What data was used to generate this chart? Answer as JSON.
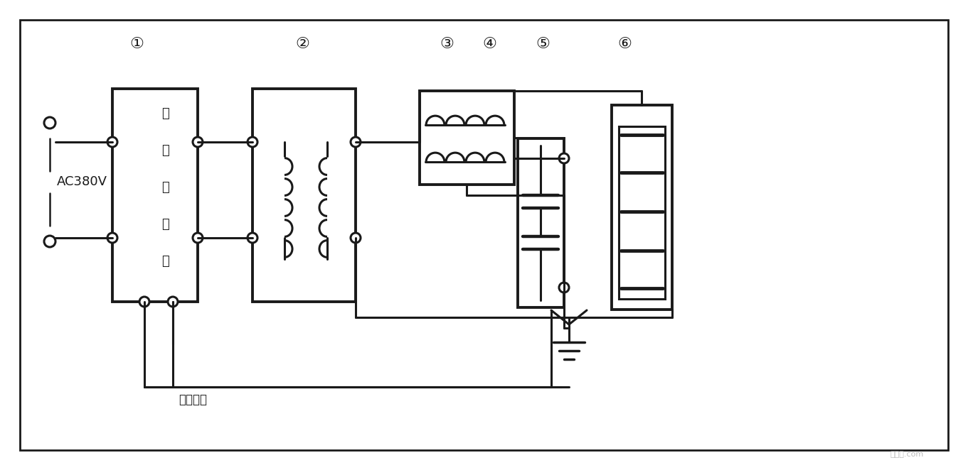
{
  "bg_color": "#ffffff",
  "line_color": "#1a1a1a",
  "ac_label": "AC380V",
  "box1_text": [
    "变",
    "频",
    "源",
    "输",
    "出"
  ],
  "measure_label": "测量输入",
  "numbers": [
    "①",
    "②",
    "③",
    "④",
    "⑤",
    "⑥"
  ],
  "watermark": "接线图.com",
  "fig_width": 13.61,
  "fig_height": 6.62,
  "dpi": 100
}
